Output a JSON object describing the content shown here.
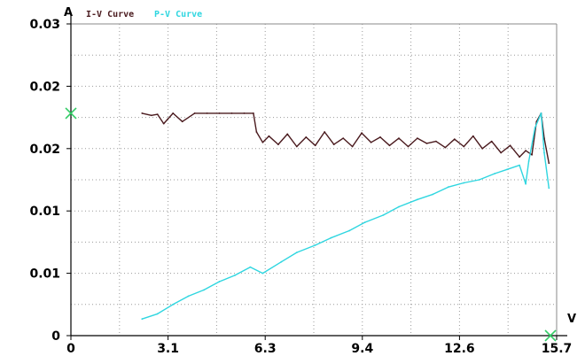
{
  "chart_data": {
    "type": "line",
    "title": "",
    "xlabel": "",
    "ylabel": "",
    "x_unit": "V",
    "y_unit": "A",
    "xlim": [
      0,
      15.7
    ],
    "ylim": [
      0,
      0.03
    ],
    "grid": true,
    "legend_position": "top-left",
    "x_ticks": [
      "0",
      "3.1",
      "6.3",
      "9.4",
      "12.6",
      "15.7"
    ],
    "y_ticks": [
      "0",
      "0.01",
      "0.01",
      "0.02",
      "0.02",
      "0.03"
    ],
    "colors": {
      "iv": "#4a1a1e",
      "pv": "#2fd6e0",
      "marker": "#33cc66",
      "grid": "#9a9a9a",
      "axis": "#8a8a8a"
    },
    "markers": [
      {
        "x": 0,
        "y": 0.0214
      },
      {
        "x": 15.5,
        "y": 0
      }
    ],
    "series": [
      {
        "name": "I-V Curve",
        "x": [
          2.3,
          2.6,
          2.8,
          3.0,
          3.3,
          3.6,
          4.0,
          4.4,
          4.8,
          5.2,
          5.6,
          5.9,
          6.0,
          6.2,
          6.4,
          6.7,
          7.0,
          7.3,
          7.6,
          7.9,
          8.2,
          8.5,
          8.8,
          9.1,
          9.4,
          9.7,
          10.0,
          10.3,
          10.6,
          10.9,
          11.2,
          11.5,
          11.8,
          12.1,
          12.4,
          12.7,
          13.0,
          13.3,
          13.6,
          13.9,
          14.2,
          14.5,
          14.7,
          14.9,
          15.05,
          15.2,
          15.3,
          15.45
        ],
        "y": [
          0.0214,
          0.0212,
          0.0213,
          0.0204,
          0.0214,
          0.0206,
          0.0214,
          0.0214,
          0.0214,
          0.0214,
          0.0214,
          0.0214,
          0.0196,
          0.0186,
          0.0192,
          0.0184,
          0.0194,
          0.0182,
          0.0191,
          0.0183,
          0.0196,
          0.0184,
          0.019,
          0.0182,
          0.0195,
          0.0186,
          0.0191,
          0.0183,
          0.019,
          0.0182,
          0.019,
          0.0185,
          0.0187,
          0.0181,
          0.0189,
          0.0182,
          0.0192,
          0.018,
          0.0187,
          0.0176,
          0.0183,
          0.0172,
          0.0178,
          0.0174,
          0.0206,
          0.0214,
          0.019,
          0.0166
        ]
      },
      {
        "name": "P-V Curve",
        "x": [
          2.3,
          2.8,
          3.3,
          3.8,
          4.3,
          4.8,
          5.3,
          5.8,
          6.2,
          6.8,
          7.3,
          7.9,
          8.4,
          9.0,
          9.5,
          10.1,
          10.6,
          11.2,
          11.7,
          12.2,
          12.7,
          13.2,
          13.7,
          14.1,
          14.5,
          14.7,
          14.8,
          15.0,
          15.2,
          15.3,
          15.45
        ],
        "y": [
          0.0016,
          0.0021,
          0.003,
          0.0038,
          0.0044,
          0.0052,
          0.0058,
          0.0066,
          0.006,
          0.0071,
          0.008,
          0.0087,
          0.0094,
          0.0101,
          0.0109,
          0.0116,
          0.0124,
          0.0131,
          0.0136,
          0.0143,
          0.0147,
          0.015,
          0.0156,
          0.016,
          0.0164,
          0.0146,
          0.0168,
          0.02,
          0.0214,
          0.0176,
          0.0142
        ]
      }
    ]
  }
}
